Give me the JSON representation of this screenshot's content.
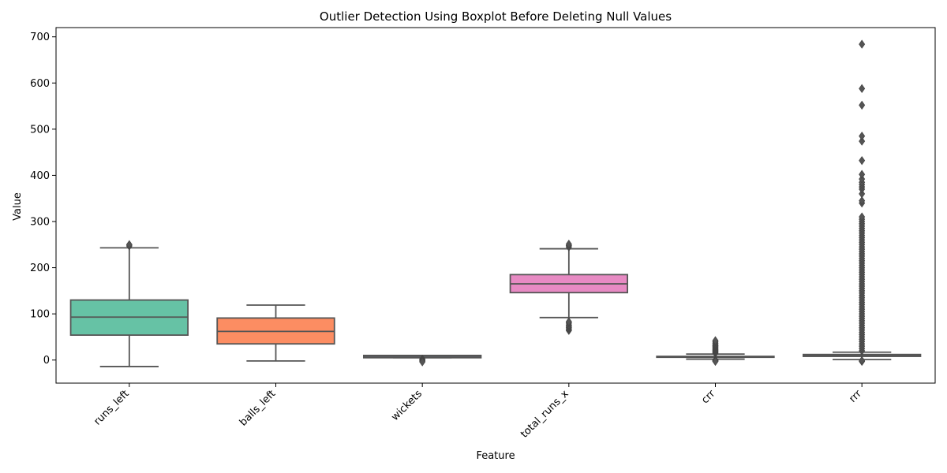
{
  "chart_data": {
    "type": "boxplot",
    "title": "Outlier Detection Using Boxplot Before Deleting Null Values",
    "xlabel": "Feature",
    "ylabel": "Value",
    "ylim": [
      -50,
      720
    ],
    "yticks": [
      0,
      100,
      200,
      300,
      400,
      500,
      600,
      700
    ],
    "grid": false,
    "legend": "none",
    "box_edge_color": "#555555",
    "series": [
      {
        "category": "runs_left",
        "color": "#66c2a5",
        "whisker_low": -14,
        "q1": 54,
        "median": 93,
        "q3": 130,
        "whisker_high": 243,
        "outliers": [
          247,
          250
        ]
      },
      {
        "category": "balls_left",
        "color": "#fc8d62",
        "whisker_low": -2,
        "q1": 35,
        "median": 62,
        "q3": 91,
        "whisker_high": 119,
        "outliers": []
      },
      {
        "category": "wickets",
        "color": "#8da0cb",
        "whisker_low": 5,
        "q1": 5,
        "median": 8,
        "q3": 10,
        "whisker_high": 10,
        "outliers": [
          2,
          0,
          -2,
          -4
        ]
      },
      {
        "category": "total_runs_x",
        "color": "#e78ac3",
        "whisker_low": 92,
        "q1": 146,
        "median": 165,
        "q3": 185,
        "whisker_high": 241,
        "outliers": [
          64,
          67,
          70,
          73,
          76,
          80,
          83,
          245,
          248,
          251
        ]
      },
      {
        "category": "crr",
        "color": "#a6d854",
        "whisker_low": 2,
        "q1": 6,
        "median": 7,
        "q3": 8,
        "whisker_high": 13,
        "outliers": [
          15,
          17,
          19,
          21,
          23,
          25,
          27,
          29,
          31,
          33,
          36,
          39,
          42,
          0,
          -1,
          -2,
          -3
        ]
      },
      {
        "category": "rrr",
        "color": "#ffd92f",
        "whisker_low": 1,
        "q1": 8,
        "median": 10,
        "q3": 12,
        "whisker_high": 17,
        "outliers": [
          -3,
          -1,
          20,
          25,
          30,
          35,
          40,
          45,
          50,
          55,
          60,
          65,
          70,
          75,
          80,
          85,
          90,
          95,
          100,
          105,
          110,
          115,
          120,
          125,
          130,
          135,
          140,
          145,
          150,
          155,
          160,
          165,
          170,
          175,
          180,
          185,
          190,
          195,
          200,
          205,
          210,
          215,
          220,
          225,
          230,
          235,
          240,
          245,
          250,
          255,
          260,
          265,
          270,
          275,
          280,
          285,
          290,
          295,
          300,
          305,
          310,
          340,
          345,
          360,
          370,
          375,
          380,
          385,
          392,
          402,
          432,
          474,
          485,
          552,
          588,
          684
        ]
      }
    ]
  }
}
